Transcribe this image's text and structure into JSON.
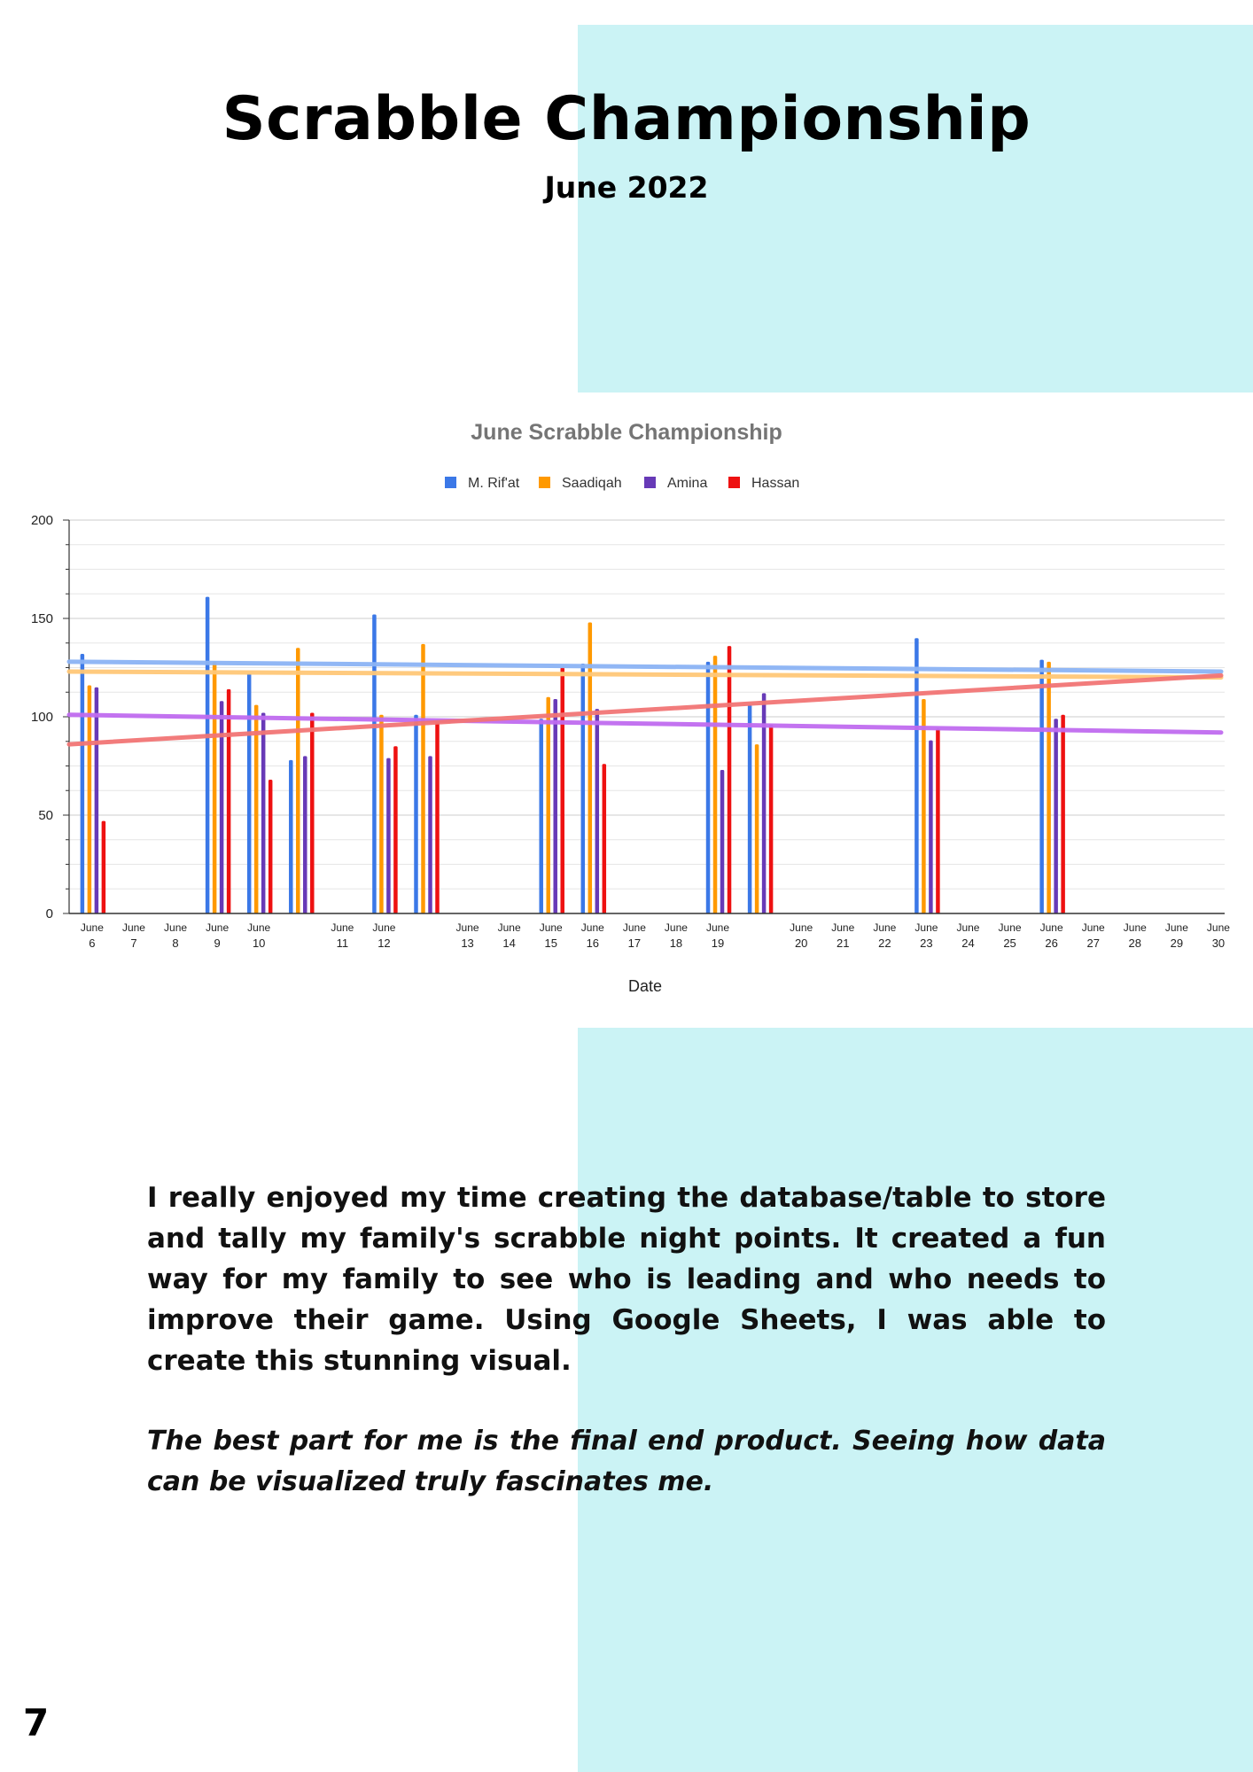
{
  "page": {
    "title": "Scrabble Championship",
    "subtitle": "June 2022",
    "page_number": "7",
    "paragraph1": "I really enjoyed my time creating the database/table to store and tally my family's scrabble night points. It created a fun way for my family to see who is leading and who needs to improve their game. Using Google Sheets, I was able to create this stunning visual.",
    "paragraph2": "The best part for me is the final end product. Seeing how data can be visualized truly fascinates me.",
    "accent_color": "#cbf3f5"
  },
  "chart_data": {
    "type": "bar",
    "title": "June Scrabble Championship",
    "xlabel": "Date",
    "ylabel": "",
    "ylim": [
      0,
      200
    ],
    "yticks": [
      0,
      50,
      100,
      150,
      200
    ],
    "grid": true,
    "legend_position": "top",
    "categories": [
      "June 6",
      "June 7",
      "June 8",
      "June 9",
      "June 10",
      "",
      "June 11",
      "June 12",
      "",
      "June 13",
      "June 14",
      "June 15",
      "June 16",
      "June 17",
      "June 18",
      "June 19",
      "",
      "June 20",
      "June 21",
      "June 22",
      "June 23",
      "June 24",
      "June 25",
      "June 26",
      "June 27",
      "June 28",
      "June 29",
      "June 30"
    ],
    "series": [
      {
        "name": "M. Rif'at",
        "color": "#3b78e7",
        "trend_color": "#8cb4f5",
        "trend": [
          128,
          123
        ],
        "values": [
          132,
          null,
          null,
          161,
          122,
          78,
          null,
          152,
          101,
          null,
          null,
          99,
          127,
          null,
          null,
          128,
          106,
          null,
          null,
          null,
          140,
          null,
          null,
          129,
          null,
          null,
          null,
          null
        ]
      },
      {
        "name": "Saadiqah",
        "color": "#ff9900",
        "trend_color": "#ffc878",
        "trend": [
          123,
          120
        ],
        "values": [
          116,
          null,
          null,
          128,
          106,
          135,
          null,
          101,
          137,
          null,
          null,
          110,
          148,
          null,
          null,
          131,
          86,
          null,
          null,
          null,
          109,
          null,
          null,
          128,
          null,
          null,
          null,
          null
        ]
      },
      {
        "name": "Amina",
        "color": "#673ab7",
        "trend_color": "#c06cf0",
        "trend": [
          101,
          92
        ],
        "values": [
          115,
          null,
          null,
          108,
          102,
          80,
          null,
          79,
          80,
          null,
          null,
          109,
          104,
          null,
          null,
          73,
          112,
          null,
          null,
          null,
          88,
          null,
          null,
          99,
          null,
          null,
          null,
          null
        ]
      },
      {
        "name": "Hassan",
        "color": "#ee1111",
        "trend_color": "#f27575",
        "trend": [
          86,
          121
        ],
        "values": [
          47,
          null,
          null,
          114,
          68,
          102,
          null,
          85,
          98,
          null,
          null,
          125,
          76,
          null,
          null,
          136,
          96,
          null,
          null,
          null,
          94,
          null,
          null,
          101,
          null,
          null,
          null,
          null
        ]
      }
    ]
  }
}
